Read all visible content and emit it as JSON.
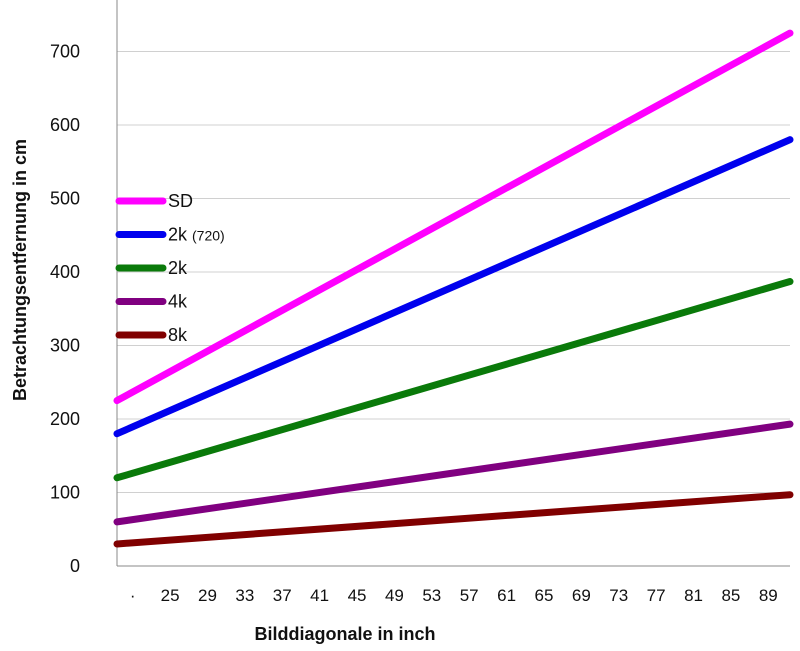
{
  "chart_data": {
    "type": "line",
    "title": "",
    "xlabel": "Bilddiagonale in inch",
    "ylabel": "Betrachtungsentfernung in cm",
    "ylim": [
      0,
      770
    ],
    "y_ticks": [
      0,
      100,
      200,
      300,
      400,
      500,
      600,
      700
    ],
    "x_range": [
      22,
      91
    ],
    "x_tick_labels": [
      "·",
      "25",
      "29",
      "33",
      "37",
      "41",
      "45",
      "49",
      "53",
      "57",
      "61",
      "65",
      "69",
      "73",
      "77",
      "81",
      "85",
      "89"
    ],
    "grid": true,
    "legend_position": "left-middle",
    "series": [
      {
        "name": "SD",
        "subname": "",
        "color": "#ff00ff",
        "x": [
          22,
          91
        ],
        "values": [
          225,
          725
        ]
      },
      {
        "name": "2k",
        "subname": "(720)",
        "color": "#0000ee",
        "x": [
          22,
          91
        ],
        "values": [
          180,
          580
        ]
      },
      {
        "name": "2k",
        "subname": "",
        "color": "#0a7a0a",
        "x": [
          22,
          91
        ],
        "values": [
          120,
          387
        ]
      },
      {
        "name": "4k",
        "subname": "",
        "color": "#800080",
        "x": [
          22,
          91
        ],
        "values": [
          60,
          193
        ]
      },
      {
        "name": "8k",
        "subname": "",
        "color": "#800000",
        "x": [
          22,
          91
        ],
        "values": [
          30,
          97
        ]
      }
    ]
  }
}
